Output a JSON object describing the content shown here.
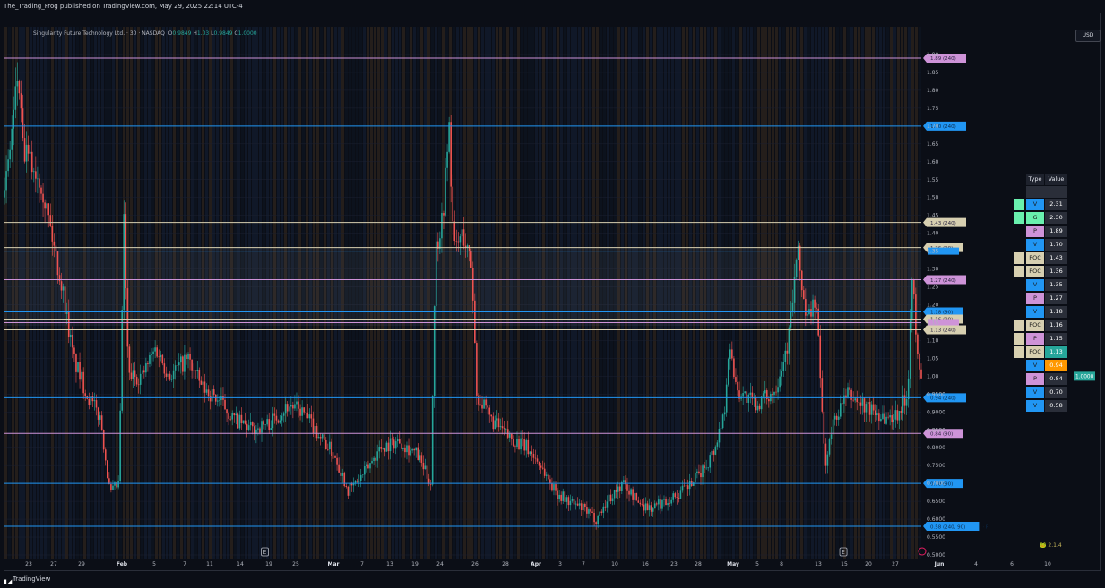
{
  "header": {
    "publish_line": "The_Trading_Frog published on TradingView.com, May 29, 2025 22:14 UTC-4"
  },
  "footer": {
    "brand": "TradingView"
  },
  "legend": {
    "symbol": "Singularity Future Technology Ltd. · 30 · NASDAQ",
    "o_label": "O",
    "o_value": "0.9849",
    "h_label": "H",
    "h_value": "1.03",
    "l_label": "L",
    "l_value": "0.9849",
    "c_label": "C",
    "c_value": "1.0000"
  },
  "currency_button": "USD",
  "colors": {
    "background": "#0b0e16",
    "volume_blue": "#2196f3",
    "pivot_purple": "#ce93d8",
    "poc_tan": "#d7cfb0",
    "green": "#69f0ae",
    "orange": "#ff9800",
    "teal": "#26a69a",
    "candle_up": "#26a69a",
    "candle_down": "#ef5350"
  },
  "chart_data": {
    "type": "candlestick",
    "ylim": [
      0.5,
      1.95
    ],
    "y_ticks": [
      "1.90",
      "1.85",
      "1.80",
      "1.75",
      "1.70",
      "1.65",
      "1.60",
      "1.55",
      "1.50",
      "1.45",
      "1.40",
      "1.35",
      "1.30",
      "1.25",
      "1.20",
      "1.15",
      "1.10",
      "1.05",
      "1.00",
      "0.9500",
      "0.9000",
      "0.8500",
      "0.8000",
      "0.7500",
      "0.7000",
      "0.6500",
      "0.6000",
      "0.5500",
      "0.5000"
    ],
    "y_tick_values": [
      1.9,
      1.85,
      1.8,
      1.75,
      1.7,
      1.65,
      1.6,
      1.55,
      1.5,
      1.45,
      1.4,
      1.35,
      1.3,
      1.25,
      1.2,
      1.15,
      1.1,
      1.05,
      1.0,
      0.95,
      0.9,
      0.85,
      0.8,
      0.75,
      0.7,
      0.65,
      0.6,
      0.55,
      0.5
    ],
    "x_ticks": [
      "23",
      "27",
      "29",
      "Feb",
      "5",
      "7",
      "11",
      "14",
      "19",
      "25",
      "Mar",
      "7",
      "13",
      "19",
      "24",
      "26",
      "28",
      "Apr",
      "3",
      "7",
      "10",
      "16",
      "23",
      "28",
      "May",
      "5",
      "8",
      "13",
      "15",
      "20",
      "27",
      "Jun",
      "4",
      "6",
      "10"
    ],
    "x_tick_bold": [
      "Feb",
      "Mar",
      "Apr",
      "May",
      "Jun"
    ],
    "last_price": {
      "value": 1.0,
      "label": "1.0000"
    },
    "price_path": [
      [
        0,
        1.5
      ],
      [
        0.015,
        1.85
      ],
      [
        0.02,
        1.63
      ],
      [
        0.04,
        1.55
      ],
      [
        0.055,
        1.35
      ],
      [
        0.065,
        1.22
      ],
      [
        0.075,
        1.05
      ],
      [
        0.09,
        0.95
      ],
      [
        0.105,
        0.88
      ],
      [
        0.115,
        0.67
      ],
      [
        0.125,
        0.7
      ],
      [
        0.13,
        1.45
      ],
      [
        0.135,
        1.0
      ],
      [
        0.15,
        1.0
      ],
      [
        0.165,
        1.08
      ],
      [
        0.18,
        1.0
      ],
      [
        0.2,
        1.05
      ],
      [
        0.215,
        0.97
      ],
      [
        0.235,
        0.93
      ],
      [
        0.25,
        0.88
      ],
      [
        0.27,
        0.85
      ],
      [
        0.29,
        0.87
      ],
      [
        0.31,
        0.92
      ],
      [
        0.325,
        0.9
      ],
      [
        0.345,
        0.83
      ],
      [
        0.36,
        0.78
      ],
      [
        0.375,
        0.68
      ],
      [
        0.39,
        0.72
      ],
      [
        0.41,
        0.8
      ],
      [
        0.43,
        0.82
      ],
      [
        0.45,
        0.78
      ],
      [
        0.465,
        0.7
      ],
      [
        0.47,
        1.35
      ],
      [
        0.478,
        1.45
      ],
      [
        0.485,
        1.7
      ],
      [
        0.49,
        1.35
      ],
      [
        0.5,
        1.4
      ],
      [
        0.51,
        1.3
      ],
      [
        0.515,
        0.95
      ],
      [
        0.53,
        0.88
      ],
      [
        0.55,
        0.83
      ],
      [
        0.57,
        0.8
      ],
      [
        0.585,
        0.75
      ],
      [
        0.6,
        0.68
      ],
      [
        0.615,
        0.65
      ],
      [
        0.63,
        0.63
      ],
      [
        0.645,
        0.6
      ],
      [
        0.66,
        0.66
      ],
      [
        0.675,
        0.7
      ],
      [
        0.69,
        0.65
      ],
      [
        0.705,
        0.63
      ],
      [
        0.72,
        0.65
      ],
      [
        0.735,
        0.67
      ],
      [
        0.75,
        0.7
      ],
      [
        0.765,
        0.75
      ],
      [
        0.775,
        0.8
      ],
      [
        0.785,
        0.9
      ],
      [
        0.79,
        1.08
      ],
      [
        0.8,
        0.96
      ],
      [
        0.82,
        0.92
      ],
      [
        0.84,
        0.96
      ],
      [
        0.855,
        1.1
      ],
      [
        0.865,
        1.35
      ],
      [
        0.875,
        1.15
      ],
      [
        0.885,
        1.22
      ],
      [
        0.895,
        0.75
      ],
      [
        0.905,
        0.88
      ],
      [
        0.92,
        0.95
      ],
      [
        0.935,
        0.92
      ],
      [
        0.95,
        0.9
      ],
      [
        0.965,
        0.88
      ],
      [
        0.975,
        0.9
      ],
      [
        0.985,
        0.95
      ],
      [
        0.99,
        1.3
      ],
      [
        0.995,
        1.06
      ],
      [
        1,
        1.0
      ]
    ],
    "levels": [
      {
        "price": 1.89,
        "label": "1.89 (240)",
        "kind": "P"
      },
      {
        "price": 1.7,
        "label": "1.70 (240)",
        "kind": "V"
      },
      {
        "price": 1.43,
        "label": "1.43 (240)",
        "kind": "POC"
      },
      {
        "price": 1.36,
        "label": "1.36 (90)",
        "kind": "POC"
      },
      {
        "price": 1.35,
        "label": "",
        "kind": "V"
      },
      {
        "price": 1.27,
        "label": "1.27 (240)",
        "kind": "P"
      },
      {
        "price": 1.18,
        "label": "1.18 (90)",
        "kind": "V"
      },
      {
        "price": 1.16,
        "label": "1.16 (90)",
        "kind": "POC"
      },
      {
        "price": 1.15,
        "label": "",
        "kind": "P"
      },
      {
        "price": 1.13,
        "label": "1.13 (240)",
        "kind": "POC"
      },
      {
        "price": 0.94,
        "label": "0.94 (240)",
        "kind": "V"
      },
      {
        "price": 0.84,
        "label": "0.84 (90)",
        "kind": "P"
      },
      {
        "price": 0.7,
        "label": "0.70 (90)",
        "kind": "V"
      },
      {
        "price": 0.58,
        "label": "0.58 (240, 90)",
        "kind": "V",
        "suffix": "P"
      }
    ],
    "earnings_markers": [
      {
        "label": "E",
        "x_frac": 0.284
      },
      {
        "label": "E",
        "x_frac": 0.915
      }
    ],
    "table": {
      "header": [
        "Type",
        "Value"
      ],
      "subheader": "--",
      "rows": [
        {
          "type": "V",
          "value": "2.31",
          "flag": "G"
        },
        {
          "type": "G",
          "value": "2.30",
          "flag": "G"
        },
        {
          "type": "P",
          "value": "1.89"
        },
        {
          "type": "V",
          "value": "1.70"
        },
        {
          "type": "POC",
          "value": "1.43",
          "flag": "N"
        },
        {
          "type": "POC",
          "value": "1.36",
          "flag": "N"
        },
        {
          "type": "V",
          "value": "1.35"
        },
        {
          "type": "P",
          "value": "1.27"
        },
        {
          "type": "V",
          "value": "1.18"
        },
        {
          "type": "POC",
          "value": "1.16",
          "flag": "N"
        },
        {
          "type": "P",
          "value": "1.15",
          "flag": "N"
        },
        {
          "type": "POC",
          "value": "1.13",
          "flag": "N",
          "highlight": "teal"
        },
        {
          "type": "V",
          "value": "0.94",
          "highlight": "orange"
        },
        {
          "type": "P",
          "value": "0.84"
        },
        {
          "type": "V",
          "value": "0.70"
        },
        {
          "type": "V",
          "value": "0.58"
        }
      ]
    }
  },
  "watermark": "2.1.4"
}
